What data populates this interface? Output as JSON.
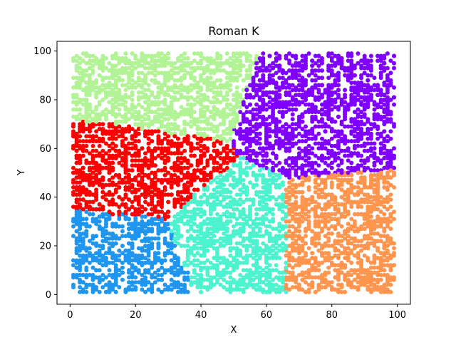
{
  "chart_data": {
    "type": "scatter",
    "title": "Roman K",
    "xlabel": "X",
    "ylabel": "Y",
    "xlim": [
      -4,
      104
    ],
    "ylim": [
      -4,
      104
    ],
    "xticks": [
      "0",
      "20",
      "40",
      "60",
      "80",
      "100"
    ],
    "yticks": [
      "0",
      "20",
      "40",
      "60",
      "80",
      "100"
    ],
    "grid": false,
    "legend": "none",
    "clusters": [
      {
        "color": "#8000ff",
        "centroid": [
          78,
          74
        ]
      },
      {
        "color": "#1e96f0",
        "centroid": [
          16,
          16
        ]
      },
      {
        "color": "#4df3ce",
        "centroid": [
          49,
          25
        ]
      },
      {
        "color": "#b2f396",
        "centroid": [
          28,
          86
        ]
      },
      {
        "color": "#ff954e",
        "centroid": [
          83,
          25
        ]
      },
      {
        "color": "#ff0000",
        "centroid": [
          21,
          49
        ]
      }
    ]
  }
}
